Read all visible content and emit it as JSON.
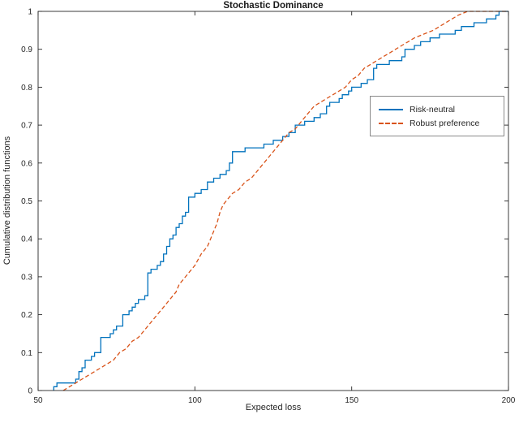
{
  "chart_data": {
    "type": "line",
    "title": "Stochastic Dominance",
    "xlabel": "Expected loss",
    "ylabel": "Cumulative distribution functions",
    "xlim": [
      50,
      200
    ],
    "ylim": [
      0,
      1
    ],
    "xticks": [
      50,
      100,
      150,
      200
    ],
    "yticks": [
      0,
      0.1,
      0.2,
      0.3,
      0.4,
      0.5,
      0.6,
      0.7,
      0.8,
      0.9,
      1
    ],
    "grid": false,
    "legend_position": "middle-right",
    "axis_color": "#262626",
    "series": [
      {
        "name": "Risk-neutral",
        "color": "#0072BD",
        "line_style": "solid",
        "interpolation": "step",
        "points": [
          [
            55,
            0.01
          ],
          [
            56,
            0.02
          ],
          [
            62,
            0.03
          ],
          [
            63,
            0.05
          ],
          [
            64,
            0.06
          ],
          [
            65,
            0.08
          ],
          [
            67,
            0.09
          ],
          [
            68,
            0.1
          ],
          [
            70,
            0.14
          ],
          [
            73,
            0.15
          ],
          [
            74,
            0.16
          ],
          [
            75,
            0.17
          ],
          [
            77,
            0.2
          ],
          [
            79,
            0.21
          ],
          [
            80,
            0.22
          ],
          [
            81,
            0.23
          ],
          [
            82,
            0.24
          ],
          [
            84,
            0.25
          ],
          [
            85,
            0.31
          ],
          [
            86,
            0.32
          ],
          [
            88,
            0.33
          ],
          [
            89,
            0.34
          ],
          [
            90,
            0.36
          ],
          [
            91,
            0.38
          ],
          [
            92,
            0.4
          ],
          [
            93,
            0.41
          ],
          [
            94,
            0.43
          ],
          [
            95,
            0.44
          ],
          [
            96,
            0.46
          ],
          [
            97,
            0.47
          ],
          [
            98,
            0.51
          ],
          [
            100,
            0.52
          ],
          [
            102,
            0.53
          ],
          [
            104,
            0.55
          ],
          [
            106,
            0.56
          ],
          [
            108,
            0.57
          ],
          [
            110,
            0.58
          ],
          [
            111,
            0.6
          ],
          [
            112,
            0.63
          ],
          [
            116,
            0.64
          ],
          [
            122,
            0.65
          ],
          [
            125,
            0.66
          ],
          [
            128,
            0.67
          ],
          [
            130,
            0.68
          ],
          [
            132,
            0.7
          ],
          [
            135,
            0.71
          ],
          [
            138,
            0.72
          ],
          [
            140,
            0.73
          ],
          [
            142,
            0.75
          ],
          [
            143,
            0.76
          ],
          [
            146,
            0.77
          ],
          [
            147,
            0.78
          ],
          [
            149,
            0.79
          ],
          [
            150,
            0.8
          ],
          [
            153,
            0.81
          ],
          [
            155,
            0.82
          ],
          [
            157,
            0.85
          ],
          [
            158,
            0.86
          ],
          [
            162,
            0.87
          ],
          [
            166,
            0.88
          ],
          [
            167,
            0.9
          ],
          [
            170,
            0.91
          ],
          [
            172,
            0.92
          ],
          [
            175,
            0.93
          ],
          [
            178,
            0.94
          ],
          [
            183,
            0.95
          ],
          [
            185,
            0.96
          ],
          [
            189,
            0.97
          ],
          [
            193,
            0.98
          ],
          [
            196,
            0.99
          ],
          [
            197,
            1.0
          ],
          [
            200,
            1.0
          ]
        ]
      },
      {
        "name": "Robust preference",
        "color": "#D95319",
        "line_style": "dashed",
        "interpolation": "linear",
        "points": [
          [
            58,
            0
          ],
          [
            60,
            0.01
          ],
          [
            62,
            0.02
          ],
          [
            64,
            0.03
          ],
          [
            66,
            0.04
          ],
          [
            68,
            0.05
          ],
          [
            70,
            0.06
          ],
          [
            72,
            0.07
          ],
          [
            74,
            0.08
          ],
          [
            76,
            0.1
          ],
          [
            78,
            0.11
          ],
          [
            80,
            0.13
          ],
          [
            82,
            0.14
          ],
          [
            84,
            0.16
          ],
          [
            85,
            0.17
          ],
          [
            86,
            0.18
          ],
          [
            88,
            0.2
          ],
          [
            90,
            0.22
          ],
          [
            92,
            0.24
          ],
          [
            94,
            0.26
          ],
          [
            95,
            0.28
          ],
          [
            96,
            0.29
          ],
          [
            98,
            0.31
          ],
          [
            100,
            0.33
          ],
          [
            102,
            0.36
          ],
          [
            104,
            0.38
          ],
          [
            105,
            0.4
          ],
          [
            106,
            0.42
          ],
          [
            107,
            0.44
          ],
          [
            108,
            0.47
          ],
          [
            109,
            0.49
          ],
          [
            110,
            0.5
          ],
          [
            112,
            0.52
          ],
          [
            114,
            0.53
          ],
          [
            116,
            0.55
          ],
          [
            118,
            0.56
          ],
          [
            120,
            0.58
          ],
          [
            122,
            0.6
          ],
          [
            124,
            0.62
          ],
          [
            126,
            0.64
          ],
          [
            128,
            0.66
          ],
          [
            130,
            0.68
          ],
          [
            132,
            0.69
          ],
          [
            134,
            0.71
          ],
          [
            136,
            0.73
          ],
          [
            138,
            0.75
          ],
          [
            140,
            0.76
          ],
          [
            142,
            0.77
          ],
          [
            144,
            0.78
          ],
          [
            146,
            0.79
          ],
          [
            148,
            0.8
          ],
          [
            150,
            0.82
          ],
          [
            152,
            0.83
          ],
          [
            154,
            0.85
          ],
          [
            156,
            0.86
          ],
          [
            158,
            0.87
          ],
          [
            160,
            0.88
          ],
          [
            162,
            0.89
          ],
          [
            164,
            0.9
          ],
          [
            166,
            0.91
          ],
          [
            168,
            0.92
          ],
          [
            170,
            0.93
          ],
          [
            173,
            0.94
          ],
          [
            176,
            0.95
          ],
          [
            178,
            0.96
          ],
          [
            180,
            0.97
          ],
          [
            182,
            0.98
          ],
          [
            184,
            0.99
          ],
          [
            187,
            1.0
          ],
          [
            200,
            1.0
          ]
        ]
      }
    ]
  }
}
